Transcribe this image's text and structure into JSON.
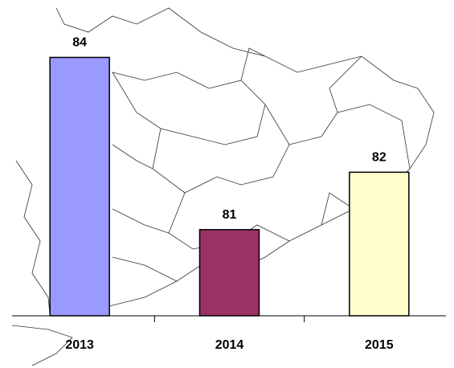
{
  "chart_data": {
    "type": "bar",
    "categories": [
      "2013",
      "2014",
      "2015"
    ],
    "values": [
      84,
      81,
      82
    ],
    "colors": [
      "#9999ff",
      "#993366",
      "#ffffcc"
    ],
    "ylim": [
      79.5,
      85
    ]
  }
}
